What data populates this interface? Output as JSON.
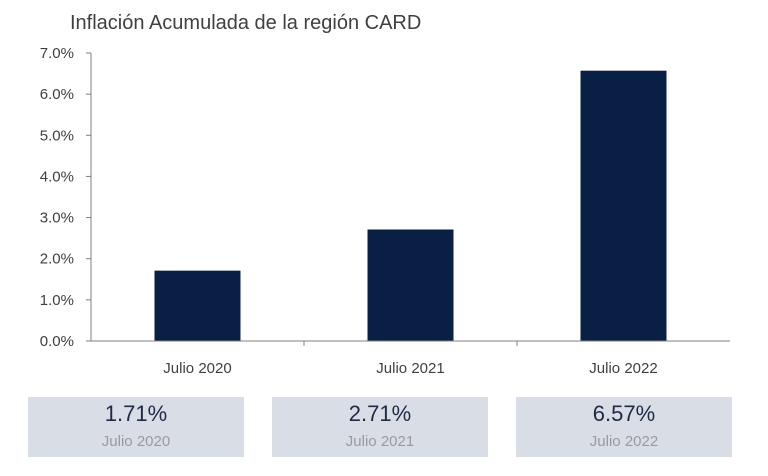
{
  "chart_data": {
    "type": "bar",
    "title": "Inflación Acumulada de la región CARD",
    "categories": [
      "Julio 2020",
      "Julio 2021",
      "Julio 2022"
    ],
    "values": [
      1.71,
      2.71,
      6.57
    ],
    "ylim": [
      0,
      7
    ],
    "yticks": [
      "0.0%",
      "1.0%",
      "2.0%",
      "3.0%",
      "4.0%",
      "5.0%",
      "6.0%",
      "7.0%"
    ],
    "xlabel": "",
    "ylabel": "",
    "grid": false,
    "bar_color": "#0a1f44"
  },
  "summary_cards": [
    {
      "value": "1.71%",
      "label": "Julio 2020"
    },
    {
      "value": "2.71%",
      "label": "Julio 2021"
    },
    {
      "value": "6.57%",
      "label": "Julio 2022"
    }
  ]
}
